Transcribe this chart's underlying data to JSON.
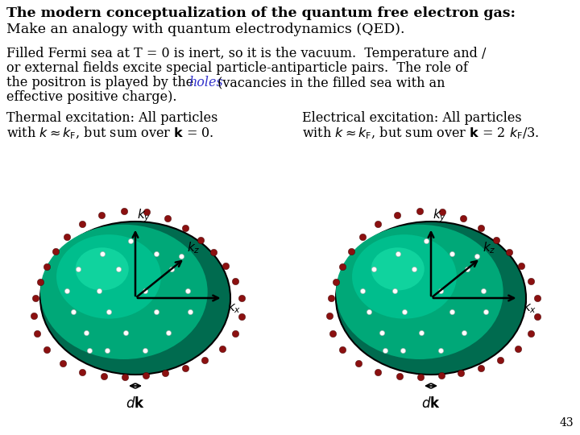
{
  "bg_color": "#ffffff",
  "title_line1": "The modern conceptualization of the quantum free electron gas:",
  "title_line2": "Make an analogy with quantum electrodynamics (QED).",
  "page_num": "43",
  "sphere_dark": "#006b4f",
  "sphere_mid": "#00a878",
  "sphere_light": "#00c896",
  "dot_white": "#ffffff",
  "dot_red": "#8b1010",
  "text_color": "#000000",
  "holes_color": "#3333cc"
}
